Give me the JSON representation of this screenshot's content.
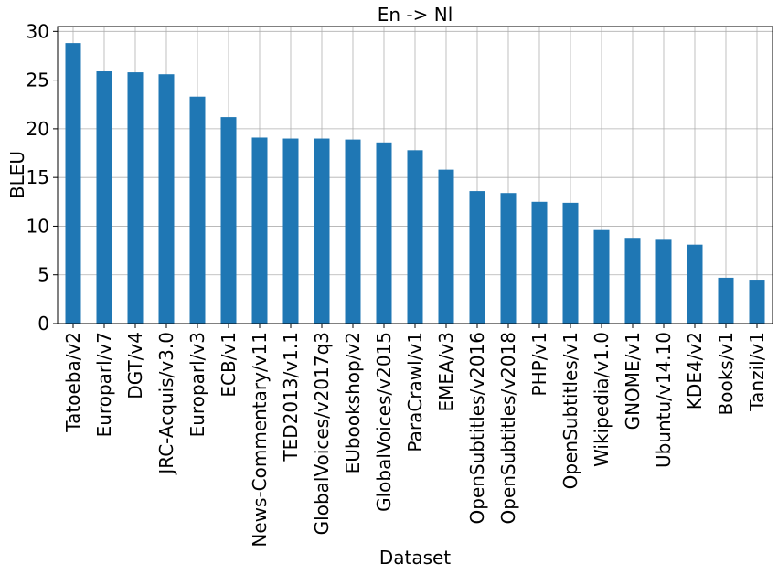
{
  "chart_data": {
    "type": "bar",
    "title": "En -> Nl",
    "xlabel": "Dataset",
    "ylabel": "BLEU",
    "ylim": [
      0,
      30.5
    ],
    "yticks": [
      0,
      5,
      10,
      15,
      20,
      25,
      30
    ],
    "grid": true,
    "bar_color": "#1f77b4",
    "categories": [
      "Tatoeba/v2",
      "Europarl/v7",
      "DGT/v4",
      "JRC-Acquis/v3.0",
      "Europarl/v3",
      "ECB/v1",
      "News-Commentary/v11",
      "TED2013/v1.1",
      "GlobalVoices/v2017q3",
      "EUbookshop/v2",
      "GlobalVoices/v2015",
      "ParaCrawl/v1",
      "EMEA/v3",
      "OpenSubtitles/v2016",
      "OpenSubtitles/v2018",
      "PHP/v1",
      "OpenSubtitles/v1",
      "Wikipedia/v1.0",
      "GNOME/v1",
      "Ubuntu/v14.10",
      "KDE4/v2",
      "Books/v1",
      "Tanzil/v1"
    ],
    "values": [
      28.8,
      25.9,
      25.8,
      25.6,
      23.3,
      21.2,
      19.1,
      19.0,
      19.0,
      18.9,
      18.6,
      17.8,
      15.8,
      13.6,
      13.4,
      12.5,
      12.4,
      9.6,
      8.8,
      8.6,
      8.1,
      4.7,
      4.5
    ]
  }
}
